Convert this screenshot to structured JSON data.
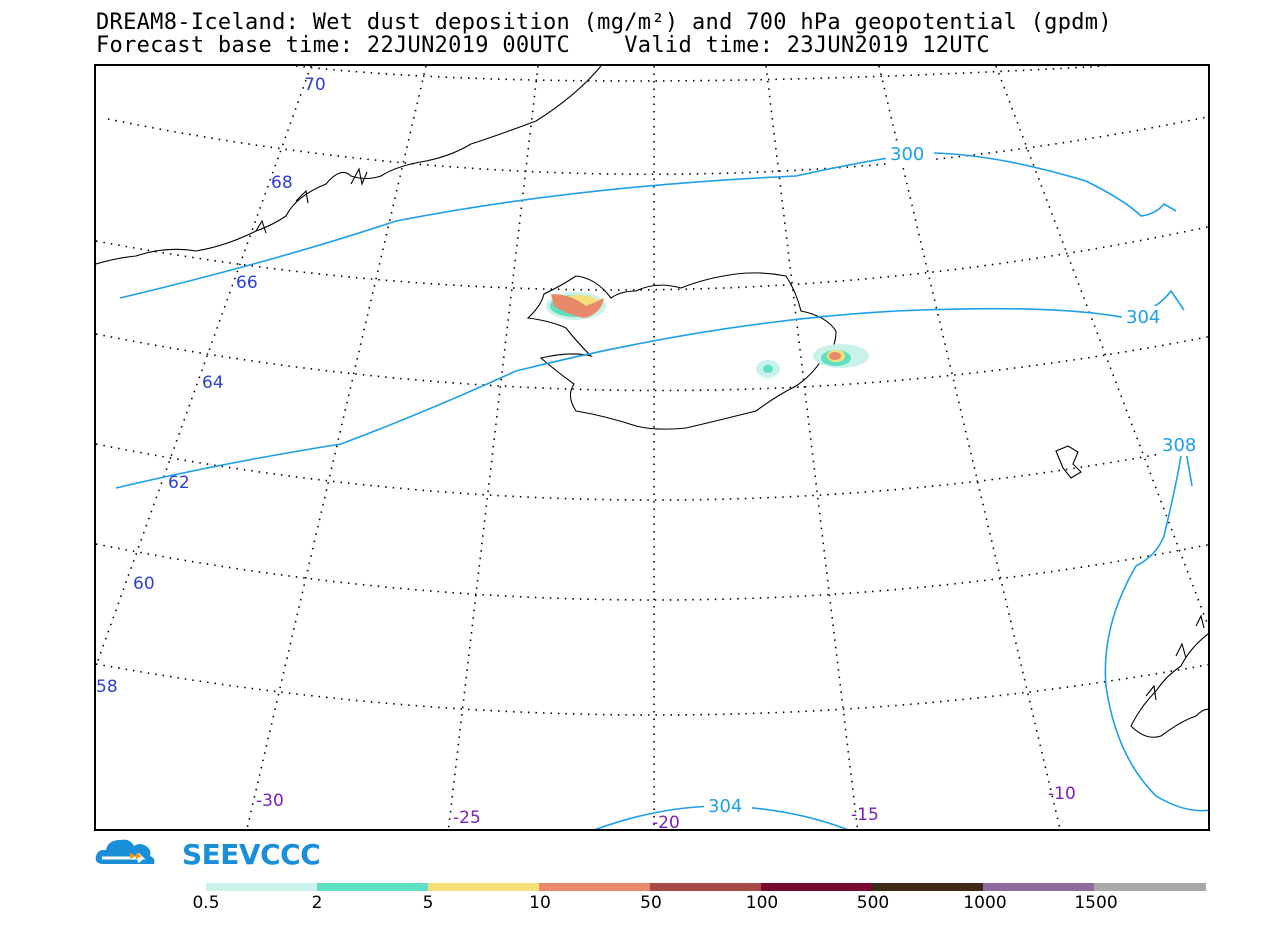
{
  "header": {
    "title_line1": "DREAM8-Iceland: Wet dust deposition (mg/m²) and 700 hPa geopotential (gpdm)",
    "title_line2": "Forecast base time: 22JUN2019 00UTC    Valid time: 23JUN2019 12UTC"
  },
  "map": {
    "latitude_labels": [
      "70",
      "68",
      "66",
      "64",
      "62",
      "60",
      "58"
    ],
    "longitude_labels": [
      "-30",
      "-25",
      "-20",
      "-15",
      "-10"
    ],
    "contours": [
      {
        "value": "300",
        "color": "#1ea0e6"
      },
      {
        "value": "304",
        "color": "#1ea0e6"
      },
      {
        "value": "308",
        "color": "#1ea0e6"
      }
    ],
    "lat_label_color": "#2b3fd6",
    "lon_label_color": "#7a1fb8"
  },
  "logo": {
    "text": "SEEVCCC",
    "brand_color": "#1a8fd8",
    "accent_color": "#f39c12"
  },
  "legend": {
    "labels": [
      "0.5",
      "2",
      "5",
      "10",
      "50",
      "100",
      "500",
      "1000",
      "1500"
    ],
    "colors": [
      "#c8f2ea",
      "#5fe0c0",
      "#f7e07a",
      "#e8896a",
      "#a84b48",
      "#7a0a30",
      "#3e2a1c",
      "#8f6a9c",
      "#a8a8a8"
    ]
  }
}
